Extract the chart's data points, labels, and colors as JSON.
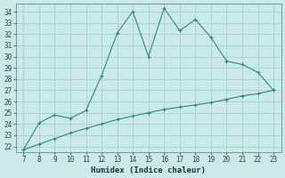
{
  "x": [
    7,
    8,
    9,
    10,
    11,
    12,
    13,
    14,
    15,
    16,
    17,
    18,
    19,
    20,
    21,
    22,
    23
  ],
  "y_main": [
    21.7,
    24.1,
    24.8,
    24.5,
    25.2,
    28.3,
    32.1,
    34.0,
    30.0,
    34.3,
    32.3,
    33.3,
    31.7,
    29.6,
    29.3,
    28.6,
    27.0
  ],
  "y_line2": [
    21.7,
    22.2,
    22.7,
    23.2,
    23.6,
    24.0,
    24.4,
    24.7,
    25.0,
    25.3,
    25.5,
    25.7,
    25.9,
    26.2,
    26.5,
    26.7,
    27.0
  ],
  "line_color": "#2d8b74",
  "bg_color": "#cce9e9",
  "grid_color": "#aacfcf",
  "xlabel": "Humidex (Indice chaleur)",
  "xlim": [
    6.5,
    23.5
  ],
  "ylim": [
    21.5,
    34.7
  ],
  "xticks": [
    7,
    8,
    9,
    10,
    11,
    12,
    13,
    14,
    15,
    16,
    17,
    18,
    19,
    20,
    21,
    22,
    23
  ],
  "yticks": [
    22,
    23,
    24,
    25,
    26,
    27,
    28,
    29,
    30,
    31,
    32,
    33,
    34
  ]
}
